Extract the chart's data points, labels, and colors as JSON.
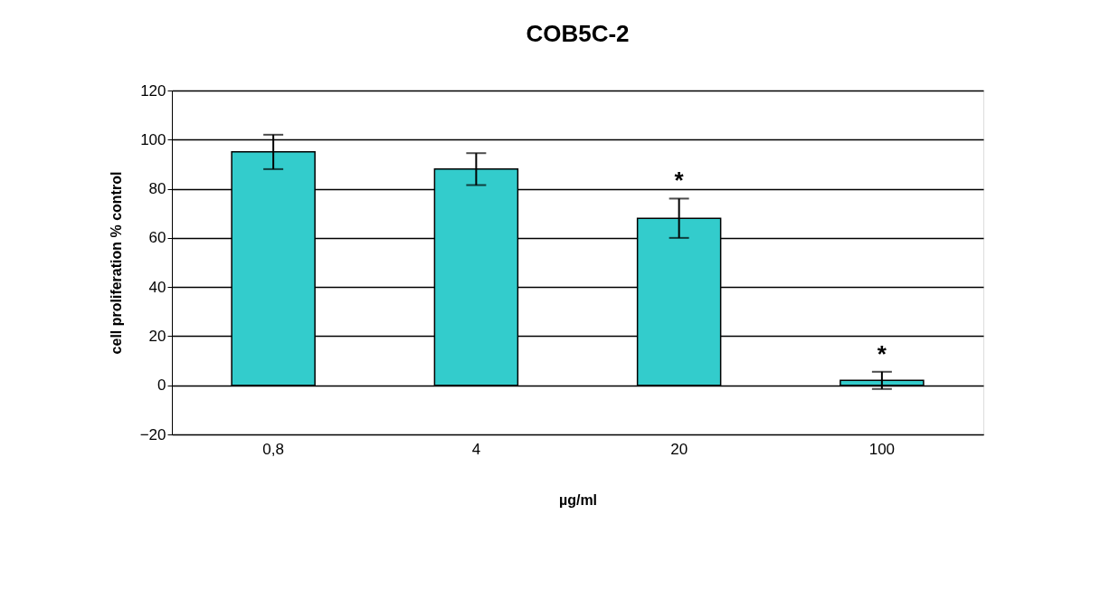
{
  "chart_data": {
    "type": "bar",
    "title": "COB5C-2",
    "xlabel": "µg/ml",
    "ylabel": "cell proliferation % control",
    "categories": [
      "0,8",
      "4",
      "20",
      "100"
    ],
    "color": "#33cccc",
    "values": [
      95,
      88,
      68,
      2
    ],
    "errors": [
      7,
      6.5,
      8,
      3.5
    ],
    "value_labels": [
      null,
      null,
      "*",
      "*"
    ],
    "ylim": [
      -20,
      120
    ],
    "yticks": [
      -20,
      0,
      20,
      40,
      60,
      80,
      100,
      120
    ],
    "grid": "y"
  }
}
